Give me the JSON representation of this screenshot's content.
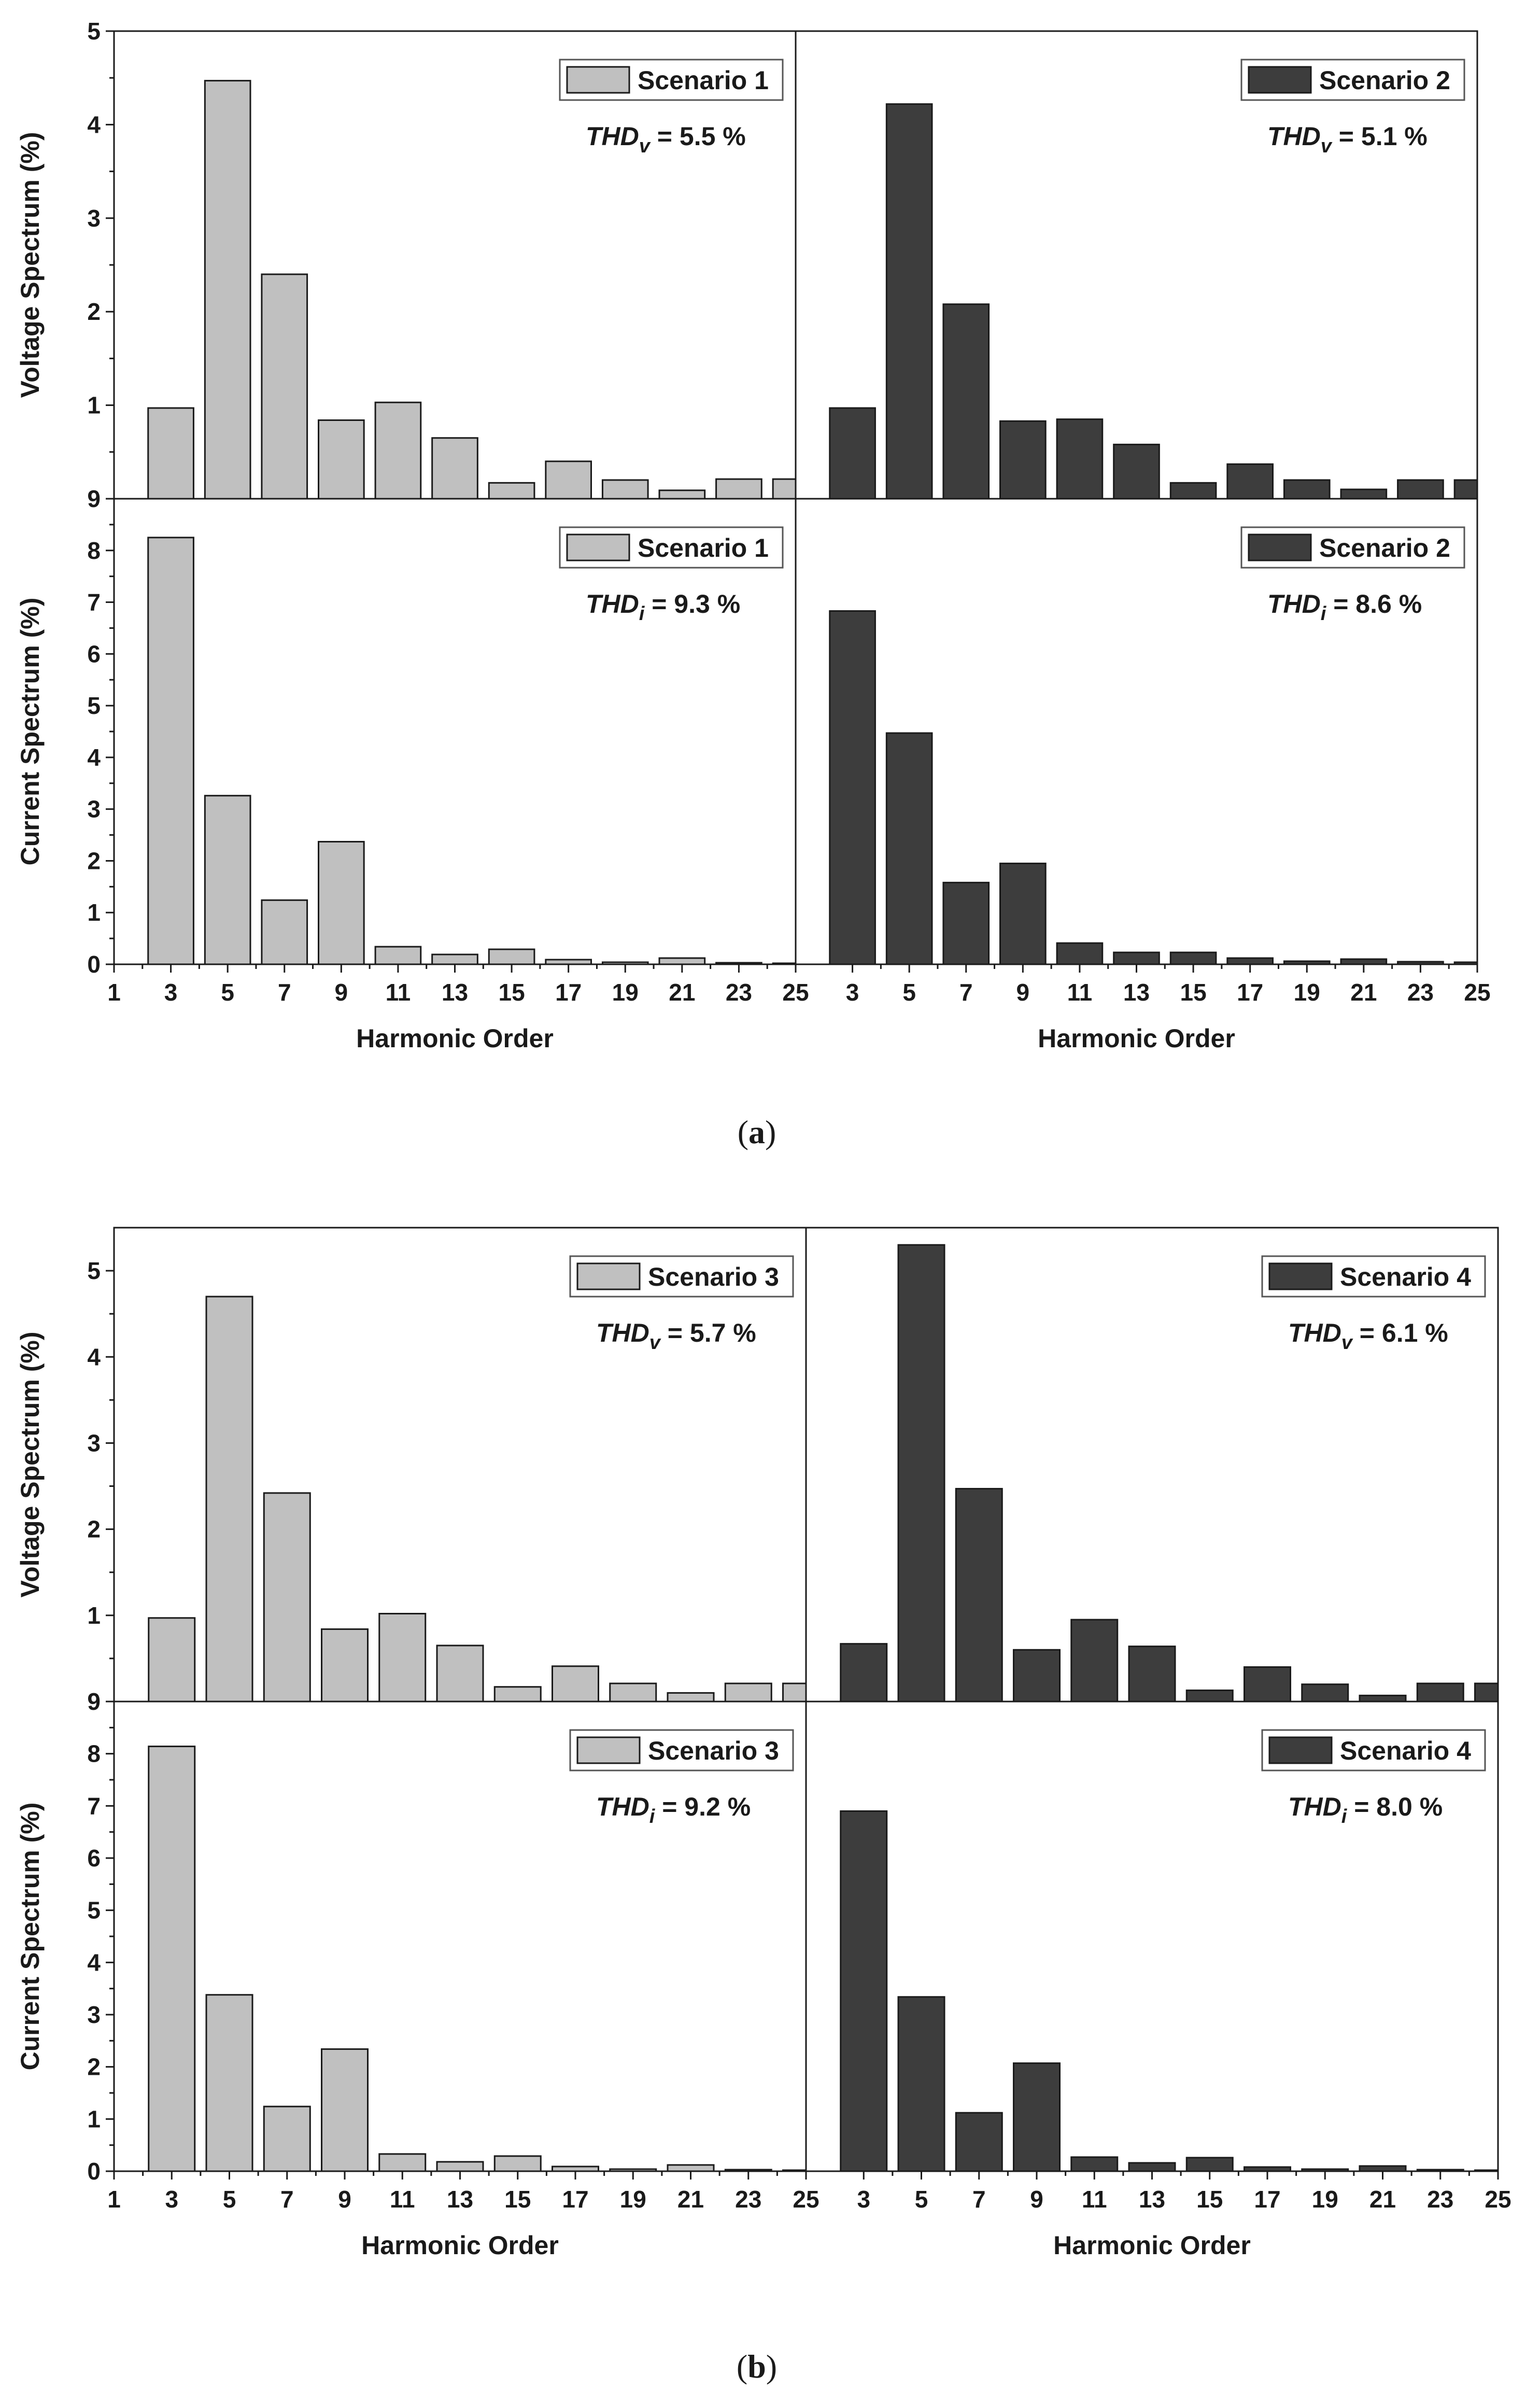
{
  "figure_labels": {
    "a": {
      "open": "(",
      "letter": "a",
      "close": ")"
    },
    "b": {
      "open": "(",
      "letter": "b",
      "close": ")"
    }
  },
  "chart_data": [
    {
      "id": "a-voltage-s1",
      "type": "bar",
      "series_name": "Scenario 1",
      "color": "#c0c0c0",
      "thd_label": "THD",
      "thd_sub": "v",
      "thd_value": " = 5.5 %",
      "ylabel": "Voltage Spectrum (%)",
      "xlabel": "",
      "ylim": [
        0,
        5
      ],
      "yticks": [
        1,
        2,
        3,
        4,
        5
      ],
      "ytick_labels": [
        "1",
        "2",
        "3",
        "4",
        "5"
      ],
      "ybase_label": "9",
      "xlim": [
        1,
        25
      ],
      "xticks": [],
      "xtick_labels": [],
      "categories": [
        3,
        5,
        7,
        9,
        11,
        13,
        15,
        17,
        19,
        21,
        23,
        25
      ],
      "values": [
        0.97,
        4.47,
        2.4,
        0.84,
        1.03,
        0.65,
        0.17,
        0.4,
        0.2,
        0.09,
        0.21,
        0.21
      ]
    },
    {
      "id": "a-voltage-s2",
      "type": "bar",
      "series_name": "Scenario 2",
      "color": "#3d3d3d",
      "thd_label": "THD",
      "thd_sub": "v",
      "thd_value": " = 5.1 %",
      "ylabel": "",
      "xlabel": "",
      "ylim": [
        0,
        5
      ],
      "yticks": [],
      "ytick_labels": [],
      "ybase_label": "",
      "xlim": [
        1,
        25
      ],
      "xticks": [],
      "xtick_labels": [],
      "categories": [
        3,
        5,
        7,
        9,
        11,
        13,
        15,
        17,
        19,
        21,
        23,
        25
      ],
      "values": [
        0.97,
        4.22,
        2.08,
        0.83,
        0.85,
        0.58,
        0.17,
        0.37,
        0.2,
        0.1,
        0.2,
        0.2
      ]
    },
    {
      "id": "a-current-s1",
      "type": "bar",
      "series_name": "Scenario 1",
      "color": "#c0c0c0",
      "thd_label": "THD",
      "thd_sub": "i",
      "thd_value": " = 9.3 %",
      "ylabel": "Current Spectrum (%)",
      "xlabel": "Harmonic Order",
      "ylim": [
        0,
        9
      ],
      "yticks": [
        0,
        1,
        2,
        3,
        4,
        5,
        6,
        7,
        8
      ],
      "ytick_labels": [
        "0",
        "1",
        "2",
        "3",
        "4",
        "5",
        "6",
        "7",
        "8"
      ],
      "ybase_label": "",
      "xlim": [
        1,
        25
      ],
      "xticks": [
        1,
        3,
        5,
        7,
        9,
        11,
        13,
        15,
        17,
        19,
        21,
        23,
        25
      ],
      "xtick_labels": [
        "1",
        "3",
        "5",
        "7",
        "9",
        "11",
        "13",
        "15",
        "17",
        "19",
        "21",
        "23",
        "25"
      ],
      "categories": [
        3,
        5,
        7,
        9,
        11,
        13,
        15,
        17,
        19,
        21,
        23,
        25
      ],
      "values": [
        8.25,
        3.26,
        1.24,
        2.37,
        0.34,
        0.19,
        0.29,
        0.09,
        0.04,
        0.12,
        0.03,
        0.02
      ]
    },
    {
      "id": "a-current-s2",
      "type": "bar",
      "series_name": "Scenario 2",
      "color": "#3d3d3d",
      "thd_label": "THD",
      "thd_sub": "i",
      "thd_value": " = 8.6 %",
      "ylabel": "",
      "xlabel": "Harmonic Order",
      "ylim": [
        0,
        9
      ],
      "yticks": [],
      "ytick_labels": [],
      "ybase_label": "",
      "xlim": [
        1,
        25
      ],
      "xticks": [
        3,
        5,
        7,
        9,
        11,
        13,
        15,
        17,
        19,
        21,
        23,
        25
      ],
      "xtick_labels": [
        "3",
        "5",
        "7",
        "9",
        "11",
        "13",
        "15",
        "17",
        "19",
        "21",
        "23",
        "25"
      ],
      "categories": [
        3,
        5,
        7,
        9,
        11,
        13,
        15,
        17,
        19,
        21,
        23,
        25
      ],
      "values": [
        6.83,
        4.47,
        1.58,
        1.95,
        0.41,
        0.23,
        0.23,
        0.12,
        0.06,
        0.1,
        0.05,
        0.04
      ]
    },
    {
      "id": "b-voltage-s3",
      "type": "bar",
      "series_name": "Scenario 3",
      "color": "#c0c0c0",
      "thd_label": "THD",
      "thd_sub": "v",
      "thd_value": " = 5.7 %",
      "ylabel": "Voltage Spectrum (%)",
      "xlabel": "",
      "ylim": [
        0,
        5.5
      ],
      "yticks": [
        1,
        2,
        3,
        4,
        5
      ],
      "ytick_labels": [
        "1",
        "2",
        "3",
        "4",
        "5"
      ],
      "ybase_label": "9",
      "xlim": [
        1,
        25
      ],
      "xticks": [],
      "xtick_labels": [],
      "categories": [
        3,
        5,
        7,
        9,
        11,
        13,
        15,
        17,
        19,
        21,
        23,
        25
      ],
      "values": [
        0.97,
        4.7,
        2.42,
        0.84,
        1.02,
        0.65,
        0.17,
        0.41,
        0.21,
        0.1,
        0.21,
        0.21
      ]
    },
    {
      "id": "b-voltage-s4",
      "type": "bar",
      "series_name": "Scenario 4",
      "color": "#3d3d3d",
      "thd_label": "THD",
      "thd_sub": "v",
      "thd_value": " = 6.1 %",
      "ylabel": "",
      "xlabel": "",
      "ylim": [
        0,
        5.5
      ],
      "yticks": [],
      "ytick_labels": [],
      "ybase_label": "",
      "xlim": [
        1,
        25
      ],
      "xticks": [],
      "xtick_labels": [],
      "categories": [
        3,
        5,
        7,
        9,
        11,
        13,
        15,
        17,
        19,
        21,
        23,
        25
      ],
      "values": [
        0.67,
        5.3,
        2.47,
        0.6,
        0.95,
        0.64,
        0.13,
        0.4,
        0.2,
        0.07,
        0.21,
        0.21
      ]
    },
    {
      "id": "b-current-s3",
      "type": "bar",
      "series_name": "Scenario 3",
      "color": "#c0c0c0",
      "thd_label": "THD",
      "thd_sub": "i",
      "thd_value": " = 9.2 %",
      "ylabel": "Current Spectrum (%)",
      "xlabel": "Harmonic Order",
      "ylim": [
        0,
        9
      ],
      "yticks": [
        0,
        1,
        2,
        3,
        4,
        5,
        6,
        7,
        8
      ],
      "ytick_labels": [
        "0",
        "1",
        "2",
        "3",
        "4",
        "5",
        "6",
        "7",
        "8"
      ],
      "ybase_label": "",
      "xlim": [
        1,
        25
      ],
      "xticks": [
        1,
        3,
        5,
        7,
        9,
        11,
        13,
        15,
        17,
        19,
        21,
        23,
        25
      ],
      "xtick_labels": [
        "1",
        "3",
        "5",
        "7",
        "9",
        "11",
        "13",
        "15",
        "17",
        "19",
        "21",
        "23",
        "25"
      ],
      "categories": [
        3,
        5,
        7,
        9,
        11,
        13,
        15,
        17,
        19,
        21,
        23,
        25
      ],
      "values": [
        8.14,
        3.38,
        1.24,
        2.34,
        0.33,
        0.18,
        0.29,
        0.09,
        0.04,
        0.12,
        0.03,
        0.02
      ]
    },
    {
      "id": "b-current-s4",
      "type": "bar",
      "series_name": "Scenario 4",
      "color": "#3d3d3d",
      "thd_label": "THD",
      "thd_sub": "i",
      "thd_value": " = 8.0 %",
      "ylabel": "",
      "xlabel": "Harmonic Order",
      "ylim": [
        0,
        9
      ],
      "yticks": [],
      "ytick_labels": [],
      "ybase_label": "",
      "xlim": [
        1,
        25
      ],
      "xticks": [
        3,
        5,
        7,
        9,
        11,
        13,
        15,
        17,
        19,
        21,
        23,
        25
      ],
      "xtick_labels": [
        "3",
        "5",
        "7",
        "9",
        "11",
        "13",
        "15",
        "17",
        "19",
        "21",
        "23",
        "25"
      ],
      "categories": [
        3,
        5,
        7,
        9,
        11,
        13,
        15,
        17,
        19,
        21,
        23,
        25
      ],
      "values": [
        6.9,
        3.34,
        1.12,
        2.07,
        0.27,
        0.16,
        0.26,
        0.08,
        0.04,
        0.1,
        0.03,
        0.02
      ]
    }
  ]
}
